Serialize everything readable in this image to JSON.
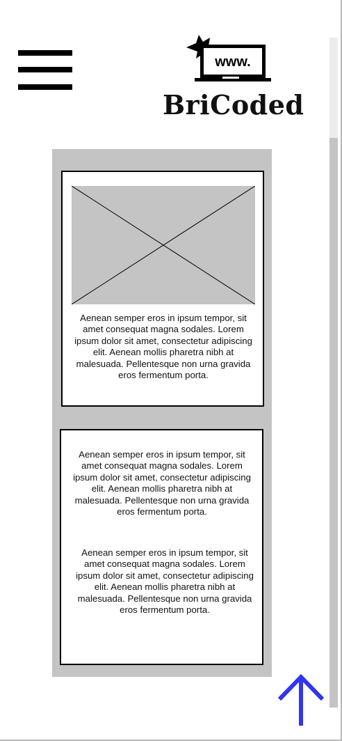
{
  "header": {
    "brand_name": "BriCoded",
    "logo_screen_text": "www."
  },
  "icons": {
    "menu": "hamburger-menu-icon",
    "logo": "laptop-logo-icon",
    "image": "image-placeholder-icon",
    "back_to_top": "arrow-up-icon"
  },
  "colors": {
    "panel": "#c4c4c4",
    "arrow": "#2f35f0",
    "text": "#111111"
  },
  "cards": [
    {
      "has_image": true,
      "paragraphs": [
        "Aenean semper eros in ipsum tempor, sit amet consequat magna sodales. Lorem ipsum dolor sit amet, consectetur adipiscing elit. Aenean mollis pharetra nibh at malesuada. Pellentesque non urna gravida eros fermentum porta."
      ]
    },
    {
      "has_image": false,
      "paragraphs": [
        "Aenean semper eros in ipsum tempor, sit amet consequat magna sodales. Lorem ipsum dolor sit amet, consectetur adipiscing elit. Aenean mollis pharetra nibh at malesuada. Pellentesque non urna gravida eros fermentum porta.",
        "Aenean semper eros in ipsum tempor, sit amet consequat magna sodales. Lorem ipsum dolor sit amet, consectetur adipiscing elit. Aenean mollis pharetra nibh at malesuada. Pellentesque non urna gravida eros fermentum porta."
      ]
    }
  ]
}
